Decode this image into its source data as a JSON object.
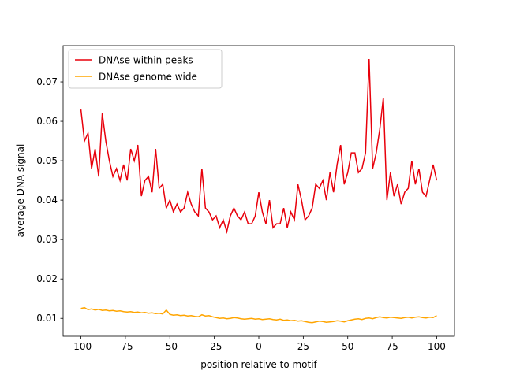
{
  "chart_data": {
    "type": "line",
    "xlabel": "position relative to motif",
    "ylabel": "average DNA signal",
    "x": [
      -100,
      -98,
      -96,
      -94,
      -92,
      -90,
      -88,
      -86,
      -84,
      -82,
      -80,
      -78,
      -76,
      -74,
      -72,
      -70,
      -68,
      -66,
      -64,
      -62,
      -60,
      -58,
      -56,
      -54,
      -52,
      -50,
      -48,
      -46,
      -44,
      -42,
      -40,
      -38,
      -36,
      -34,
      -32,
      -30,
      -28,
      -26,
      -24,
      -22,
      -20,
      -18,
      -16,
      -14,
      -12,
      -10,
      -8,
      -6,
      -4,
      -2,
      0,
      2,
      4,
      6,
      8,
      10,
      12,
      14,
      16,
      18,
      20,
      22,
      24,
      26,
      28,
      30,
      32,
      34,
      36,
      38,
      40,
      42,
      44,
      46,
      48,
      50,
      52,
      54,
      56,
      58,
      60,
      62,
      64,
      66,
      68,
      70,
      72,
      74,
      76,
      78,
      80,
      82,
      84,
      86,
      88,
      90,
      92,
      94,
      96,
      98,
      100
    ],
    "series": [
      {
        "name": "DNAse within peaks",
        "color": "#e8000b",
        "values": [
          0.063,
          0.055,
          0.057,
          0.048,
          0.053,
          0.046,
          0.062,
          0.055,
          0.05,
          0.046,
          0.048,
          0.045,
          0.049,
          0.045,
          0.053,
          0.05,
          0.054,
          0.041,
          0.045,
          0.046,
          0.042,
          0.053,
          0.043,
          0.044,
          0.038,
          0.04,
          0.037,
          0.039,
          0.037,
          0.038,
          0.042,
          0.039,
          0.037,
          0.036,
          0.048,
          0.038,
          0.037,
          0.035,
          0.036,
          0.033,
          0.035,
          0.032,
          0.036,
          0.038,
          0.036,
          0.035,
          0.037,
          0.034,
          0.034,
          0.036,
          0.042,
          0.037,
          0.034,
          0.04,
          0.033,
          0.034,
          0.034,
          0.038,
          0.033,
          0.037,
          0.035,
          0.044,
          0.04,
          0.035,
          0.036,
          0.038,
          0.044,
          0.043,
          0.045,
          0.04,
          0.047,
          0.042,
          0.049,
          0.054,
          0.044,
          0.047,
          0.052,
          0.052,
          0.047,
          0.048,
          0.052,
          0.0758,
          0.048,
          0.052,
          0.058,
          0.066,
          0.04,
          0.047,
          0.041,
          0.044,
          0.039,
          0.042,
          0.043,
          0.05,
          0.044,
          0.048,
          0.042,
          0.041,
          0.045,
          0.049,
          0.045
        ]
      },
      {
        "name": "DNAse genome wide",
        "color": "#ffa500",
        "values": [
          0.0125,
          0.0127,
          0.0122,
          0.0124,
          0.0121,
          0.0123,
          0.012,
          0.0121,
          0.0119,
          0.012,
          0.0118,
          0.0119,
          0.0117,
          0.0116,
          0.0117,
          0.0115,
          0.0116,
          0.0114,
          0.0115,
          0.0113,
          0.0114,
          0.0112,
          0.0113,
          0.0111,
          0.0121,
          0.011,
          0.0108,
          0.0109,
          0.0107,
          0.0108,
          0.0106,
          0.0107,
          0.0105,
          0.0104,
          0.0109,
          0.0106,
          0.0107,
          0.0104,
          0.0102,
          0.01,
          0.0101,
          0.0099,
          0.01,
          0.0102,
          0.0101,
          0.0099,
          0.0098,
          0.0099,
          0.01,
          0.0098,
          0.0099,
          0.0097,
          0.0098,
          0.0099,
          0.0097,
          0.0096,
          0.0098,
          0.0095,
          0.0096,
          0.0094,
          0.0095,
          0.0093,
          0.0094,
          0.0092,
          0.009,
          0.0089,
          0.0091,
          0.0093,
          0.0092,
          0.009,
          0.0091,
          0.0092,
          0.0094,
          0.0093,
          0.0091,
          0.0094,
          0.0096,
          0.0098,
          0.0099,
          0.0097,
          0.01,
          0.0101,
          0.0099,
          0.0102,
          0.0104,
          0.0102,
          0.0101,
          0.0103,
          0.0102,
          0.0101,
          0.01,
          0.0102,
          0.0103,
          0.0101,
          0.0103,
          0.0104,
          0.0102,
          0.0101,
          0.0103,
          0.0102,
          0.0107
        ]
      }
    ],
    "xlim": [
      -110,
      110
    ],
    "ylim": [
      0.00545,
      0.0792
    ],
    "xticks": [
      -100,
      -75,
      -50,
      -25,
      0,
      25,
      50,
      75,
      100
    ],
    "yticks": [
      0.01,
      0.02,
      0.03,
      0.04,
      0.05,
      0.06,
      0.07
    ],
    "legend": "upper left"
  }
}
